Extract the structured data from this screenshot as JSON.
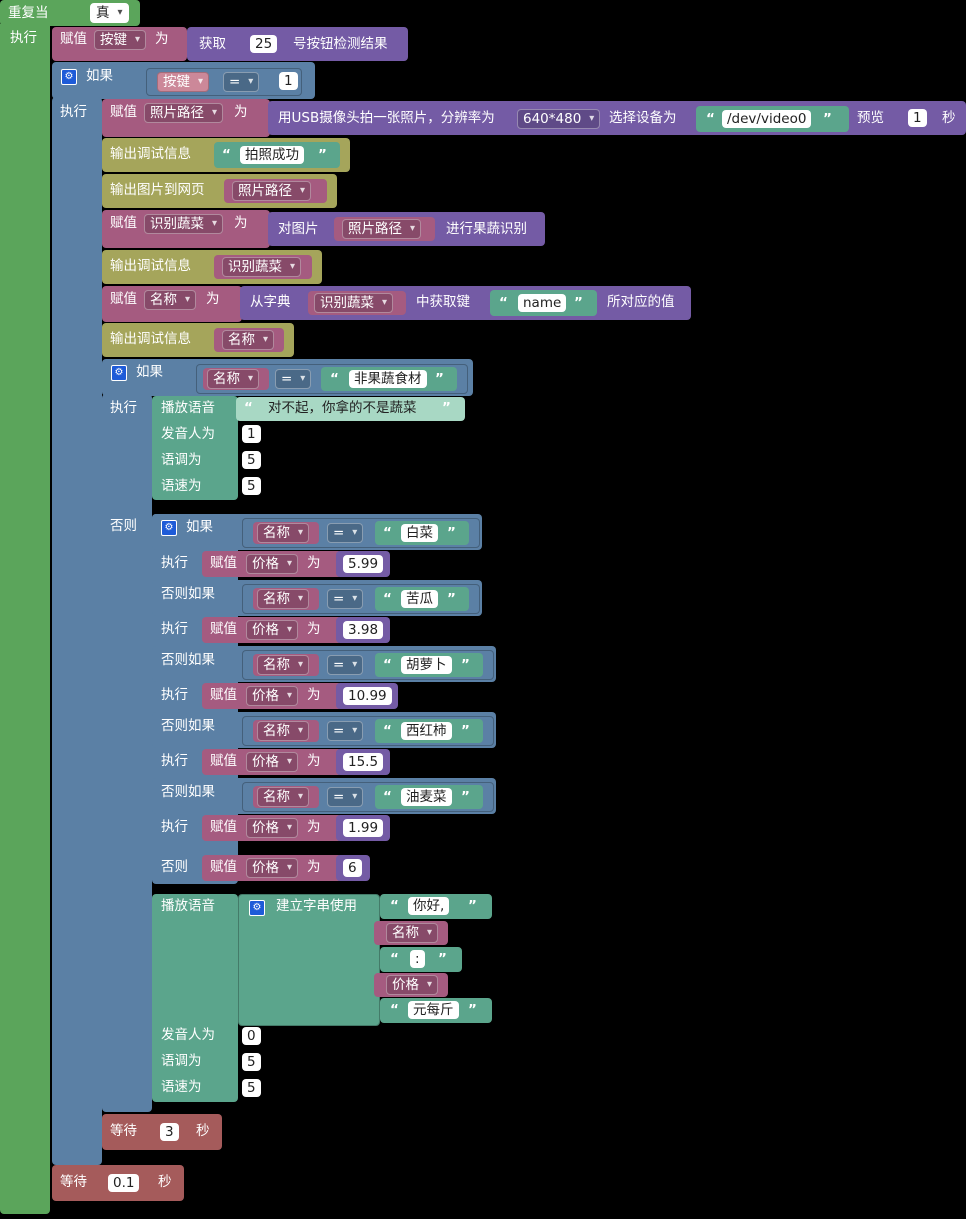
{
  "while": {
    "label": "重复当",
    "cond": "真",
    "do": "执行"
  },
  "set_key": {
    "set": "赋值",
    "var": "按键",
    "to": "为",
    "get": "获取",
    "num": "25",
    "suffix": "号按钮检测结果"
  },
  "if1": {
    "if": "如果",
    "var": "按键",
    "op": "=",
    "val": "1",
    "do": "执行"
  },
  "photo": {
    "set": "赋值",
    "var": "照片路径",
    "to": "为",
    "text": "用USB摄像头拍一张照片，分辨率为",
    "res": "640*480",
    "dev_label": "选择设备为",
    "dev": "/dev/video0",
    "preview": "预览",
    "preview_val": "1",
    "sec": "秒"
  },
  "dbg1": {
    "label": "输出调试信息",
    "text": "拍照成功"
  },
  "img_out": {
    "label": "输出图片到网页",
    "var": "照片路径"
  },
  "recog": {
    "set": "赋值",
    "var": "识别蔬菜",
    "to": "为",
    "pre": "对图片",
    "img": "照片路径",
    "post": "进行果蔬识别"
  },
  "dbg2": {
    "label": "输出调试信息",
    "var": "识别蔬菜"
  },
  "setname": {
    "set": "赋值",
    "var": "名称",
    "to": "为",
    "pre": "从字典",
    "dict": "识别蔬菜",
    "mid": "中获取键",
    "key": "name",
    "post": "所对应的值"
  },
  "dbg3": {
    "label": "输出调试信息",
    "var": "名称"
  },
  "if2": {
    "if": "如果",
    "var": "名称",
    "op": "=",
    "val": "非果蔬食材",
    "do": "执行",
    "else": "否则"
  },
  "speak1": {
    "label": "播放语音",
    "text": "对不起，你拿的不是蔬菜",
    "speaker": "发音人为",
    "speaker_val": "1",
    "pitch": "语调为",
    "pitch_val": "5",
    "speed": "语速为",
    "speed_val": "5"
  },
  "if3": {
    "if": "如果",
    "elseif": "否则如果",
    "do": "执行",
    "else": "否则",
    "var": "名称",
    "op": "=",
    "set": "赋值",
    "price": "价格",
    "to": "为",
    "branches": [
      {
        "val": "白菜",
        "price": "5.99"
      },
      {
        "val": "苦瓜",
        "price": "3.98"
      },
      {
        "val": "胡萝卜",
        "price": "10.99"
      },
      {
        "val": "西红柿",
        "price": "15.5"
      },
      {
        "val": "油麦菜",
        "price": "1.99"
      }
    ],
    "else_price": "6"
  },
  "speak2": {
    "label": "播放语音",
    "join": "建立字串使用",
    "s1": "你好,",
    "v1": "名称",
    "s2": ":",
    "v2": "价格",
    "s3": "元每斤",
    "speaker": "发音人为",
    "speaker_val": "0",
    "pitch": "语调为",
    "pitch_val": "5",
    "speed": "语速为",
    "speed_val": "5"
  },
  "wait1": {
    "label": "等待",
    "val": "3",
    "unit": "秒"
  },
  "wait2": {
    "label": "等待",
    "val": "0.1",
    "unit": "秒"
  },
  "colors": {
    "loop": "#5ba55b",
    "logic": "#5b80a5",
    "variable": "#a55b80",
    "procedure": "#745ba5",
    "output": "#a5a55b",
    "text": "#5ba58c",
    "wait": "#a55b5b"
  }
}
